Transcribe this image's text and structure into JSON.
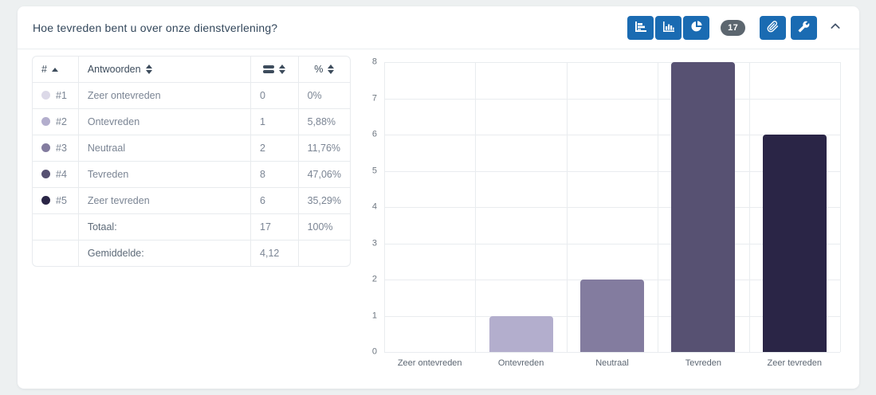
{
  "header": {
    "title": "Hoe tevreden bent u over onze dienstverlening?",
    "response_count": "17"
  },
  "toolbar": {
    "icons": {
      "view_bar_horizontal": "bar-chart-horizontal",
      "view_bar_vertical": "column-chart",
      "view_pie": "pie-chart",
      "attachment": "paperclip",
      "settings": "wrench",
      "collapse": "chevron-up"
    }
  },
  "table": {
    "headers": {
      "rank": "#",
      "answers": "Antwoorden",
      "count_icon": "bars-icon",
      "percent": "%"
    },
    "rows": [
      {
        "rank": "#1",
        "label": "Zeer ontevreden",
        "count": "0",
        "percent": "0%",
        "color": "#dcd9e8"
      },
      {
        "rank": "#2",
        "label": "Ontevreden",
        "count": "1",
        "percent": "5,88%",
        "color": "#b3aecd"
      },
      {
        "rank": "#3",
        "label": "Neutraal",
        "count": "2",
        "percent": "11,76%",
        "color": "#837c9f"
      },
      {
        "rank": "#4",
        "label": "Tevreden",
        "count": "8",
        "percent": "47,06%",
        "color": "#575172"
      },
      {
        "rank": "#5",
        "label": "Zeer tevreden",
        "count": "6",
        "percent": "35,29%",
        "color": "#2a2546"
      }
    ],
    "footer": {
      "total_label": "Totaal:",
      "total_count": "17",
      "total_percent": "100%",
      "average_label": "Gemiddelde:",
      "average_value": "4,12"
    }
  },
  "chart_data": {
    "type": "bar",
    "categories": [
      "Zeer ontevreden",
      "Ontevreden",
      "Neutraal",
      "Tevreden",
      "Zeer tevreden"
    ],
    "values": [
      0,
      1,
      2,
      8,
      6
    ],
    "colors": [
      "#dcd9e8",
      "#b3aecd",
      "#837c9f",
      "#575172",
      "#2a2546"
    ],
    "title": "",
    "xlabel": "",
    "ylabel": "",
    "ylim": [
      0,
      8
    ],
    "yticks": [
      0,
      1,
      2,
      3,
      4,
      5,
      6,
      7,
      8
    ],
    "grid": true,
    "legend": false
  },
  "colors": {
    "accent_blue": "#1a6bb2",
    "badge_gray": "#5c666f",
    "page_background": "#edf0f1"
  }
}
